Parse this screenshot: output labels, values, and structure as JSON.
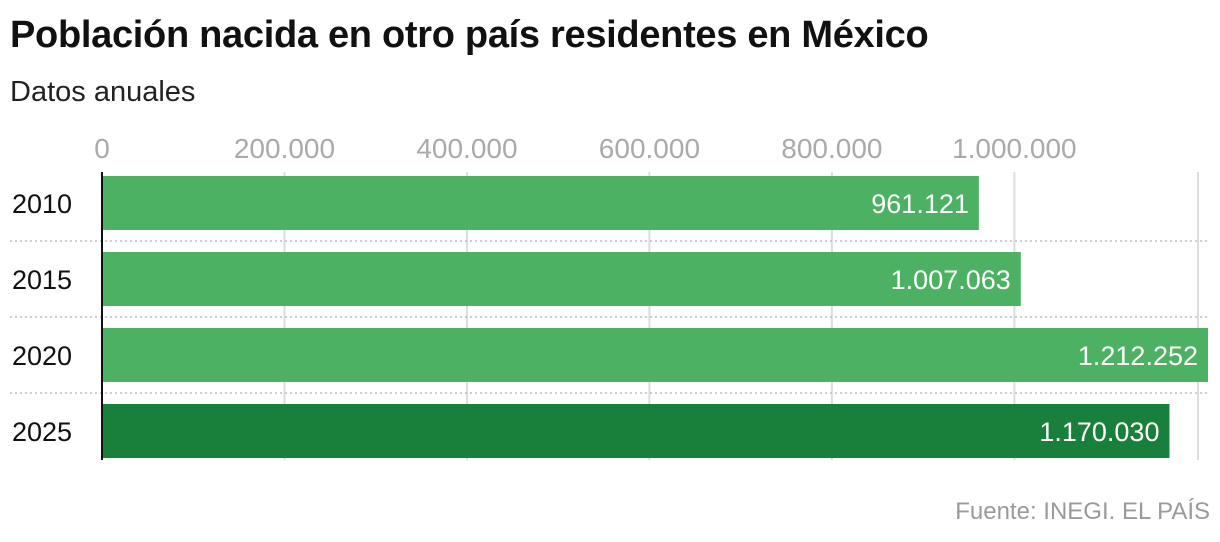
{
  "title": "Población nacida en otro país residentes en México",
  "subtitle": "Datos anuales",
  "source": "Fuente: INEGI. EL PAÍS",
  "colors": {
    "bar": "#4db163",
    "highlight": "#18803a",
    "grid": "#dcdcdc",
    "separator": "#bdbdbd",
    "axis": "#111111"
  },
  "chart_data": {
    "type": "bar",
    "orientation": "horizontal",
    "title": "Población nacida en otro país residentes en México",
    "subtitle": "Datos anuales",
    "categories": [
      "2010",
      "2015",
      "2020",
      "2025"
    ],
    "values": [
      961121,
      1007063,
      1212252,
      1170030
    ],
    "value_labels": [
      "961.121",
      "1.007.063",
      "1.212.252",
      "1.170.030"
    ],
    "highlight": "2025",
    "xlim": [
      0,
      1212252
    ],
    "ticks": [
      0,
      200000,
      400000,
      600000,
      800000,
      1000000
    ],
    "tick_labels": [
      "0",
      "200.000",
      "400.000",
      "600.000",
      "800.000",
      "1.000.000"
    ],
    "grid": true,
    "axis_position": "top",
    "xlabel": "",
    "ylabel": ""
  }
}
